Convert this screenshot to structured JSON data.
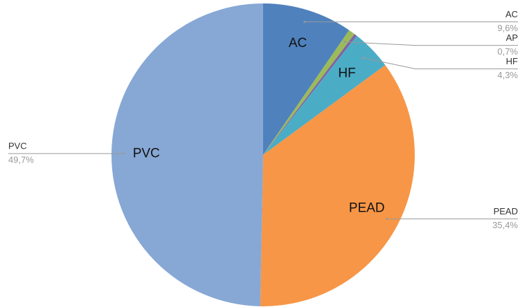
{
  "chart_data": {
    "type": "pie",
    "categories": [
      "AC",
      "AP",
      null,
      "HF",
      "PEAD",
      "PVC"
    ],
    "values": [
      9.6,
      0.7,
      0.3,
      4.3,
      35.4,
      49.7
    ],
    "value_labels": [
      "9,6%",
      "0,7%",
      null,
      "4,3%",
      "35,4%",
      "49,7%"
    ],
    "colors": [
      "#4f81bd",
      "#9bbb59",
      "#8064a2",
      "#4bacc6",
      "#f79646",
      "#87a8d5"
    ]
  }
}
